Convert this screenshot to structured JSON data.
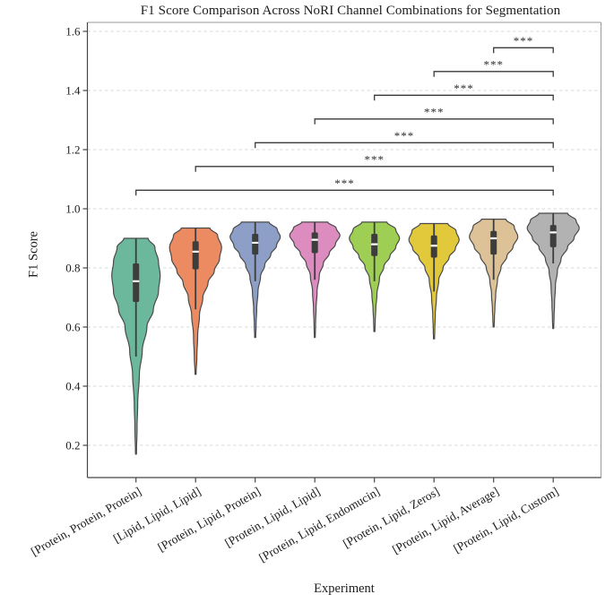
{
  "chart_data": {
    "type": "violin",
    "title": "F1 Score Comparison Across NoRI Channel Combinations for Segmentation",
    "xlabel": "Experiment",
    "ylabel": "F1 Score",
    "ylim": [
      0.09,
      1.63
    ],
    "yticks": [
      0.2,
      0.4,
      0.6,
      0.8,
      1.0,
      1.2,
      1.4,
      1.6
    ],
    "grid": "horizontal-dashed",
    "legend": "none",
    "categories": [
      "[Protein, Protein, Protein]",
      "[Lipid, Lipid, Lipid]",
      "[Protein, Lipid, Protein]",
      "[Protein, Lipid, Lipid]",
      "[Protein, Lipid, Endomucin]",
      "[Protein, Lipid, Zeros]",
      "[Protein, Lipid, Average]",
      "[Protein, Lipid, Custom]"
    ],
    "series": [
      {
        "name": "[Protein, Protein, Protein]",
        "color": "#6cb89c",
        "stats": {
          "min": 0.17,
          "whisker_low": 0.5,
          "q1": 0.685,
          "median": 0.755,
          "q3": 0.815,
          "whisker_high": 0.9,
          "max": 0.9
        },
        "profile": [
          [
            0.9,
            0.5
          ],
          [
            0.87,
            0.78
          ],
          [
            0.82,
            0.93
          ],
          [
            0.775,
            1.0
          ],
          [
            0.72,
            0.93
          ],
          [
            0.66,
            0.72
          ],
          [
            0.6,
            0.45
          ],
          [
            0.52,
            0.26
          ],
          [
            0.44,
            0.14
          ],
          [
            0.34,
            0.07
          ],
          [
            0.26,
            0.045
          ],
          [
            0.17,
            0.02
          ]
        ]
      },
      {
        "name": "[Lipid, Lipid, Lipid]",
        "color": "#ec8b62",
        "stats": {
          "min": 0.44,
          "whisker_low": 0.66,
          "q1": 0.795,
          "median": 0.855,
          "q3": 0.89,
          "whisker_high": 0.935,
          "max": 0.935
        },
        "profile": [
          [
            0.935,
            0.55
          ],
          [
            0.91,
            0.85
          ],
          [
            0.87,
            1.0
          ],
          [
            0.83,
            0.92
          ],
          [
            0.79,
            0.72
          ],
          [
            0.75,
            0.48
          ],
          [
            0.7,
            0.28
          ],
          [
            0.64,
            0.15
          ],
          [
            0.57,
            0.08
          ],
          [
            0.5,
            0.05
          ],
          [
            0.44,
            0.02
          ]
        ]
      },
      {
        "name": "[Protein, Lipid, Protein]",
        "color": "#8d9fc7",
        "stats": {
          "min": 0.565,
          "whisker_low": 0.755,
          "q1": 0.845,
          "median": 0.885,
          "q3": 0.915,
          "whisker_high": 0.955,
          "max": 0.955
        },
        "profile": [
          [
            0.955,
            0.55
          ],
          [
            0.93,
            0.88
          ],
          [
            0.905,
            1.0
          ],
          [
            0.875,
            0.85
          ],
          [
            0.845,
            0.62
          ],
          [
            0.81,
            0.38
          ],
          [
            0.77,
            0.21
          ],
          [
            0.72,
            0.11
          ],
          [
            0.66,
            0.06
          ],
          [
            0.61,
            0.035
          ],
          [
            0.565,
            0.02
          ]
        ]
      },
      {
        "name": "[Protein, Lipid, Lipid]",
        "color": "#dd8cc0",
        "stats": {
          "min": 0.565,
          "whisker_low": 0.76,
          "q1": 0.85,
          "median": 0.895,
          "q3": 0.92,
          "whisker_high": 0.955,
          "max": 0.955
        },
        "profile": [
          [
            0.955,
            0.52
          ],
          [
            0.935,
            0.85
          ],
          [
            0.91,
            1.0
          ],
          [
            0.88,
            0.82
          ],
          [
            0.85,
            0.58
          ],
          [
            0.815,
            0.34
          ],
          [
            0.775,
            0.18
          ],
          [
            0.72,
            0.09
          ],
          [
            0.66,
            0.05
          ],
          [
            0.61,
            0.03
          ],
          [
            0.565,
            0.018
          ]
        ]
      },
      {
        "name": "[Protein, Lipid, Endomucin]",
        "color": "#9ecf54",
        "stats": {
          "min": 0.585,
          "whisker_low": 0.755,
          "q1": 0.84,
          "median": 0.88,
          "q3": 0.915,
          "whisker_high": 0.955,
          "max": 0.955
        },
        "profile": [
          [
            0.955,
            0.5
          ],
          [
            0.93,
            0.85
          ],
          [
            0.9,
            1.0
          ],
          [
            0.87,
            0.85
          ],
          [
            0.84,
            0.62
          ],
          [
            0.805,
            0.38
          ],
          [
            0.765,
            0.2
          ],
          [
            0.71,
            0.1
          ],
          [
            0.66,
            0.055
          ],
          [
            0.62,
            0.032
          ],
          [
            0.585,
            0.02
          ]
        ]
      },
      {
        "name": "[Protein, Lipid, Zeros]",
        "color": "#e2c93c",
        "stats": {
          "min": 0.56,
          "whisker_low": 0.72,
          "q1": 0.835,
          "median": 0.875,
          "q3": 0.91,
          "whisker_high": 0.95,
          "max": 0.95
        },
        "profile": [
          [
            0.95,
            0.55
          ],
          [
            0.925,
            0.88
          ],
          [
            0.895,
            1.0
          ],
          [
            0.865,
            0.85
          ],
          [
            0.835,
            0.6
          ],
          [
            0.8,
            0.36
          ],
          [
            0.76,
            0.19
          ],
          [
            0.7,
            0.095
          ],
          [
            0.64,
            0.05
          ],
          [
            0.59,
            0.03
          ],
          [
            0.56,
            0.02
          ]
        ]
      },
      {
        "name": "[Protein, Lipid, Average]",
        "color": "#ddc197",
        "stats": {
          "min": 0.6,
          "whisker_low": 0.76,
          "q1": 0.845,
          "median": 0.9,
          "q3": 0.925,
          "whisker_high": 0.965,
          "max": 0.965
        },
        "profile": [
          [
            0.965,
            0.5
          ],
          [
            0.94,
            0.85
          ],
          [
            0.905,
            1.0
          ],
          [
            0.87,
            0.8
          ],
          [
            0.84,
            0.55
          ],
          [
            0.8,
            0.3
          ],
          [
            0.76,
            0.16
          ],
          [
            0.71,
            0.085
          ],
          [
            0.66,
            0.05
          ],
          [
            0.63,
            0.032
          ],
          [
            0.6,
            0.02
          ]
        ]
      },
      {
        "name": "[Protein, Lipid, Custom]",
        "color": "#b2b2b2",
        "stats": {
          "min": 0.595,
          "whisker_low": 0.815,
          "q1": 0.87,
          "median": 0.92,
          "q3": 0.945,
          "whisker_high": 0.985,
          "max": 0.985
        },
        "profile": [
          [
            0.985,
            0.55
          ],
          [
            0.96,
            0.88
          ],
          [
            0.935,
            1.0
          ],
          [
            0.9,
            0.8
          ],
          [
            0.87,
            0.55
          ],
          [
            0.83,
            0.3
          ],
          [
            0.79,
            0.16
          ],
          [
            0.74,
            0.085
          ],
          [
            0.68,
            0.05
          ],
          [
            0.63,
            0.03
          ],
          [
            0.595,
            0.018
          ]
        ]
      }
    ],
    "significance": [
      {
        "group1": 0,
        "group2": 7,
        "label": "***"
      },
      {
        "group1": 1,
        "group2": 7,
        "label": "***"
      },
      {
        "group1": 2,
        "group2": 7,
        "label": "***"
      },
      {
        "group1": 3,
        "group2": 7,
        "label": "***"
      },
      {
        "group1": 4,
        "group2": 7,
        "label": "***"
      },
      {
        "group1": 5,
        "group2": 7,
        "label": "***"
      },
      {
        "group1": 6,
        "group2": 7,
        "label": "***"
      }
    ]
  }
}
